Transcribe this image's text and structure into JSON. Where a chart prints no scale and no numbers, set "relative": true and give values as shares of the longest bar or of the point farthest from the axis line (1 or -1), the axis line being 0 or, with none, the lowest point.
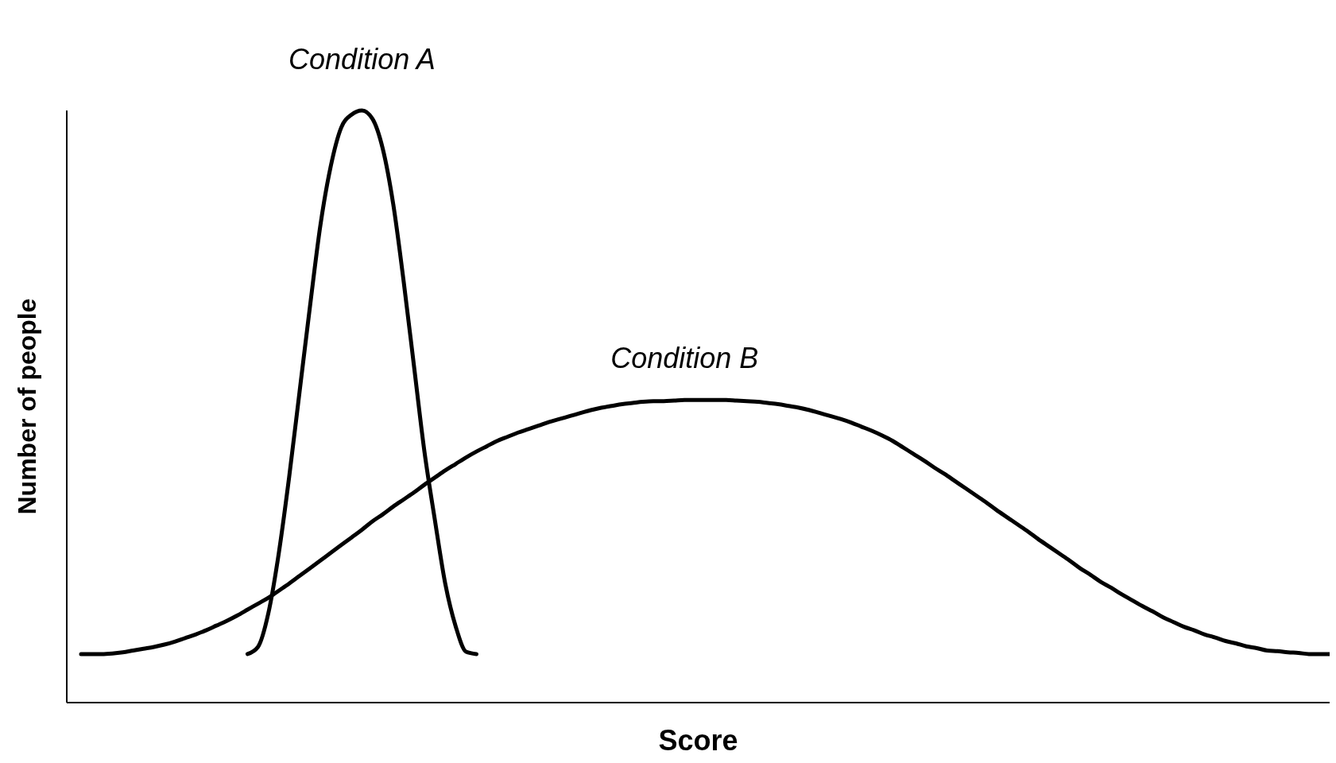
{
  "chart_data": {
    "type": "line",
    "relative": true,
    "xlabel": "Score",
    "ylabel": "Number of people",
    "categories": [
      null,
      null,
      null,
      null,
      null,
      null,
      null,
      null,
      null,
      null,
      null,
      null,
      null,
      null,
      null,
      null,
      null,
      null,
      null,
      null,
      null,
      null,
      null,
      null,
      null,
      null,
      null,
      null,
      null,
      null,
      null,
      null,
      null,
      null,
      null,
      null,
      null,
      null,
      null,
      null,
      null,
      null,
      null,
      null,
      null,
      null,
      null,
      null,
      null,
      null,
      null,
      null,
      null,
      null,
      null,
      null,
      null,
      null,
      null,
      null,
      null,
      null,
      null,
      null,
      null,
      null,
      null,
      null,
      null,
      null,
      null,
      null,
      null,
      null,
      null,
      null,
      null,
      null,
      null,
      null,
      null,
      null,
      null,
      null,
      null,
      null,
      null,
      null,
      null,
      null,
      null,
      null,
      null,
      null,
      null,
      null,
      null,
      null,
      null,
      null,
      null,
      null,
      null,
      null,
      null,
      null,
      null,
      null,
      null,
      null,
      null,
      null,
      null,
      null,
      null,
      null,
      null,
      null,
      null,
      null,
      null
    ],
    "series": [
      {
        "name": "Condition A",
        "color": "#000000",
        "values": [
          null,
          null,
          null,
          null,
          null,
          null,
          null,
          null,
          null,
          null,
          null,
          null,
          null,
          null,
          null,
          null,
          0.082,
          0.094,
          0.151,
          0.252,
          0.381,
          0.525,
          0.669,
          0.806,
          0.906,
          0.971,
          0.993,
          1,
          0.986,
          0.935,
          0.842,
          0.712,
          0.568,
          0.424,
          0.309,
          0.201,
          0.129,
          0.086,
          0.082,
          null,
          null,
          null,
          null,
          null,
          null,
          null,
          null,
          null,
          null,
          null,
          null,
          null,
          null,
          null,
          null,
          null,
          null,
          null,
          null,
          null,
          null,
          null,
          null,
          null,
          null,
          null,
          null,
          null,
          null,
          null,
          null,
          null,
          null,
          null,
          null,
          null,
          null,
          null,
          null,
          null,
          null,
          null,
          null,
          null,
          null,
          null,
          null,
          null,
          null,
          null,
          null,
          null,
          null,
          null,
          null,
          null,
          null,
          null,
          null,
          null,
          null,
          null,
          null,
          null,
          null,
          null,
          null,
          null,
          null,
          null,
          null,
          null,
          null,
          null,
          null,
          null,
          null,
          null,
          null,
          null,
          null
        ]
      },
      {
        "name": "Condition B",
        "color": "#000000",
        "values": [
          0.082,
          0.082,
          0.082,
          0.083,
          0.085,
          0.088,
          0.091,
          0.094,
          0.098,
          0.103,
          0.109,
          0.115,
          0.122,
          0.13,
          0.138,
          0.147,
          0.157,
          0.167,
          0.177,
          0.189,
          0.201,
          0.214,
          0.227,
          0.24,
          0.253,
          0.266,
          0.279,
          0.292,
          0.306,
          0.318,
          0.331,
          0.343,
          0.355,
          0.368,
          0.38,
          0.392,
          0.403,
          0.414,
          0.424,
          0.433,
          0.442,
          0.449,
          0.456,
          0.462,
          0.468,
          0.474,
          0.479,
          0.484,
          0.489,
          0.494,
          0.498,
          0.501,
          0.504,
          0.506,
          0.508,
          0.509,
          0.509,
          0.51,
          0.511,
          0.511,
          0.511,
          0.511,
          0.511,
          0.51,
          0.509,
          0.508,
          0.506,
          0.504,
          0.501,
          0.498,
          0.494,
          0.489,
          0.484,
          0.479,
          0.473,
          0.466,
          0.459,
          0.451,
          0.442,
          0.431,
          0.42,
          0.409,
          0.397,
          0.386,
          0.374,
          0.362,
          0.35,
          0.338,
          0.325,
          0.313,
          0.301,
          0.289,
          0.276,
          0.264,
          0.252,
          0.24,
          0.227,
          0.216,
          0.204,
          0.194,
          0.183,
          0.173,
          0.163,
          0.154,
          0.144,
          0.136,
          0.128,
          0.122,
          0.115,
          0.11,
          0.104,
          0.1,
          0.095,
          0.092,
          0.088,
          0.087,
          0.085,
          0.084,
          0.082,
          0.082,
          0.082
        ]
      }
    ]
  }
}
